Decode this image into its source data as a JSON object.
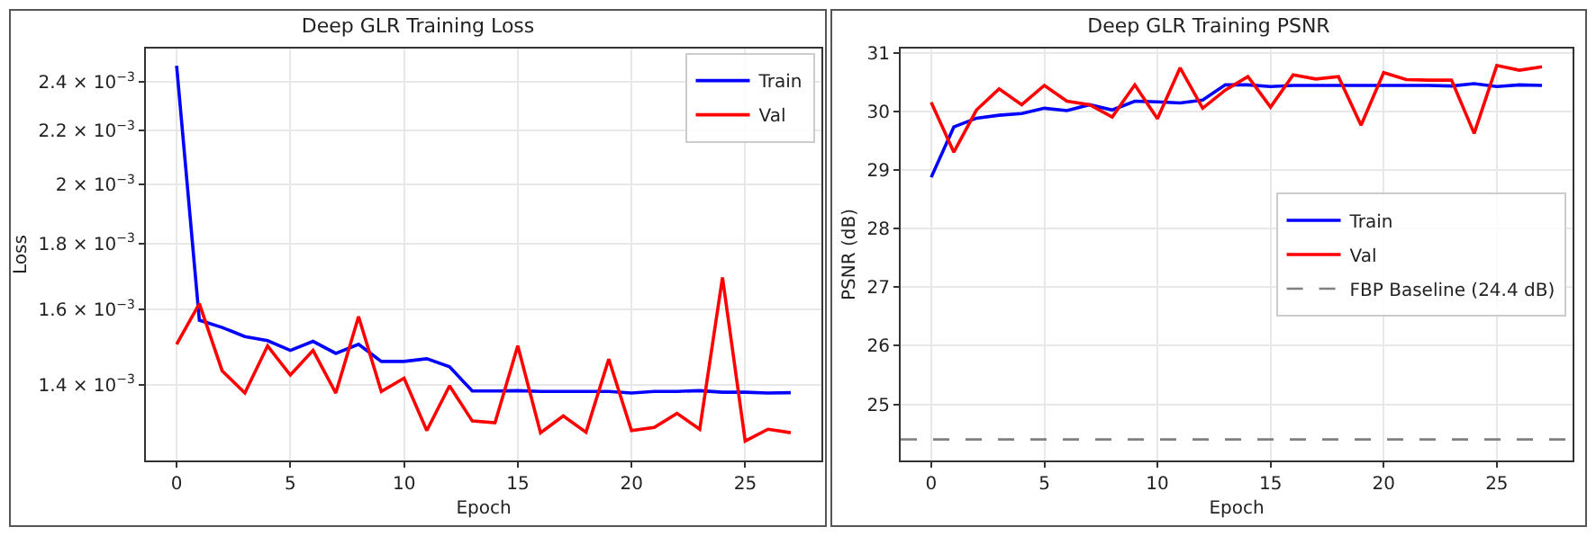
{
  "chart_data": [
    {
      "type": "line",
      "title": "Deep GLR Training Loss",
      "xlabel": "Epoch",
      "ylabel": "Loss",
      "x": [
        0,
        1,
        2,
        3,
        4,
        5,
        6,
        7,
        8,
        9,
        10,
        11,
        12,
        13,
        14,
        15,
        16,
        17,
        18,
        19,
        20,
        21,
        22,
        23,
        24,
        25,
        26,
        27
      ],
      "series": [
        {
          "name": "Train",
          "color": "#0000ff",
          "values": [
            0.00247,
            0.00157,
            0.00155,
            0.001525,
            0.001514,
            0.001488,
            0.001512,
            0.00148,
            0.001504,
            0.001459,
            0.001459,
            0.001466,
            0.001445,
            0.001384,
            0.001384,
            0.001385,
            0.001383,
            0.001383,
            0.001383,
            0.001383,
            0.001379,
            0.001383,
            0.001383,
            0.001385,
            0.001381,
            0.001381,
            0.001379,
            0.00138
          ]
        },
        {
          "name": "Val",
          "color": "#ff0000",
          "values": [
            0.001504,
            0.001617,
            0.001435,
            0.001379,
            0.0015,
            0.001424,
            0.001488,
            0.001379,
            0.00158,
            0.001383,
            0.001416,
            0.00129,
            0.001397,
            0.001312,
            0.001308,
            0.0015,
            0.001285,
            0.001324,
            0.001286,
            0.001465,
            0.00129,
            0.001297,
            0.00133,
            0.001293,
            0.001694,
            0.001266,
            0.001293,
            0.001285
          ]
        }
      ],
      "log": "y",
      "xlim": [
        -1.35,
        28.35
      ],
      "xticks": [
        0,
        5,
        10,
        15,
        20,
        25
      ],
      "ylim": [
        0.001223,
        0.002547
      ],
      "yticks": [
        {
          "value": 0.0014,
          "label": "1.4 × 10$^{−3}$"
        },
        {
          "value": 0.0016,
          "label": "1.6 × 10$^{−3}$"
        },
        {
          "value": 0.0018,
          "label": "1.8 × 10$^{−3}$"
        },
        {
          "value": 0.002,
          "label": "2 × 10$^{−3}$"
        },
        {
          "value": 0.0022,
          "label": "2.2 × 10$^{−3}$"
        },
        {
          "value": 0.0024,
          "label": "2.4 × 10$^{−3}$"
        }
      ],
      "grid": true,
      "legend": "top right",
      "line_style": "solid",
      "marker": "none"
    },
    {
      "type": "line",
      "title": "Deep GLR Training PSNR",
      "xlabel": "Epoch",
      "ylabel": "PSNR (dB)",
      "x": [
        0,
        1,
        2,
        3,
        4,
        5,
        6,
        7,
        8,
        9,
        10,
        11,
        12,
        13,
        14,
        15,
        16,
        17,
        18,
        19,
        20,
        21,
        22,
        23,
        24,
        25,
        26,
        27
      ],
      "series": [
        {
          "name": "Train",
          "color": "#0000ff",
          "values": [
            28.88,
            29.74,
            29.89,
            29.94,
            29.97,
            30.06,
            30.02,
            30.12,
            30.03,
            30.18,
            30.17,
            30.15,
            30.2,
            30.46,
            30.46,
            30.43,
            30.45,
            30.45,
            30.45,
            30.45,
            30.45,
            30.45,
            30.45,
            30.44,
            30.48,
            30.43,
            30.46,
            30.45
          ]
        },
        {
          "name": "Val",
          "color": "#ff0000",
          "values": [
            30.16,
            29.31,
            30.03,
            30.39,
            30.12,
            30.45,
            30.18,
            30.12,
            29.91,
            30.46,
            29.88,
            30.75,
            30.06,
            30.37,
            30.6,
            30.08,
            30.63,
            30.56,
            30.6,
            29.77,
            30.67,
            30.55,
            30.54,
            30.54,
            29.63,
            30.79,
            30.71,
            30.77
          ]
        }
      ],
      "ref_lines": [
        {
          "axis": "y",
          "value": 24.4,
          "label": "FBP Baseline (24.4 dB)",
          "color": "#808080",
          "line_style": "dashed"
        }
      ],
      "xlim": [
        -1.35,
        28.35
      ],
      "xticks": [
        0,
        5,
        10,
        15,
        20,
        25
      ],
      "ylim": [
        24.04,
        31.08
      ],
      "yticks": [
        25,
        26,
        27,
        28,
        29,
        30,
        31
      ],
      "grid": true,
      "legend": "right",
      "line_style": "solid",
      "marker": "none"
    }
  ]
}
